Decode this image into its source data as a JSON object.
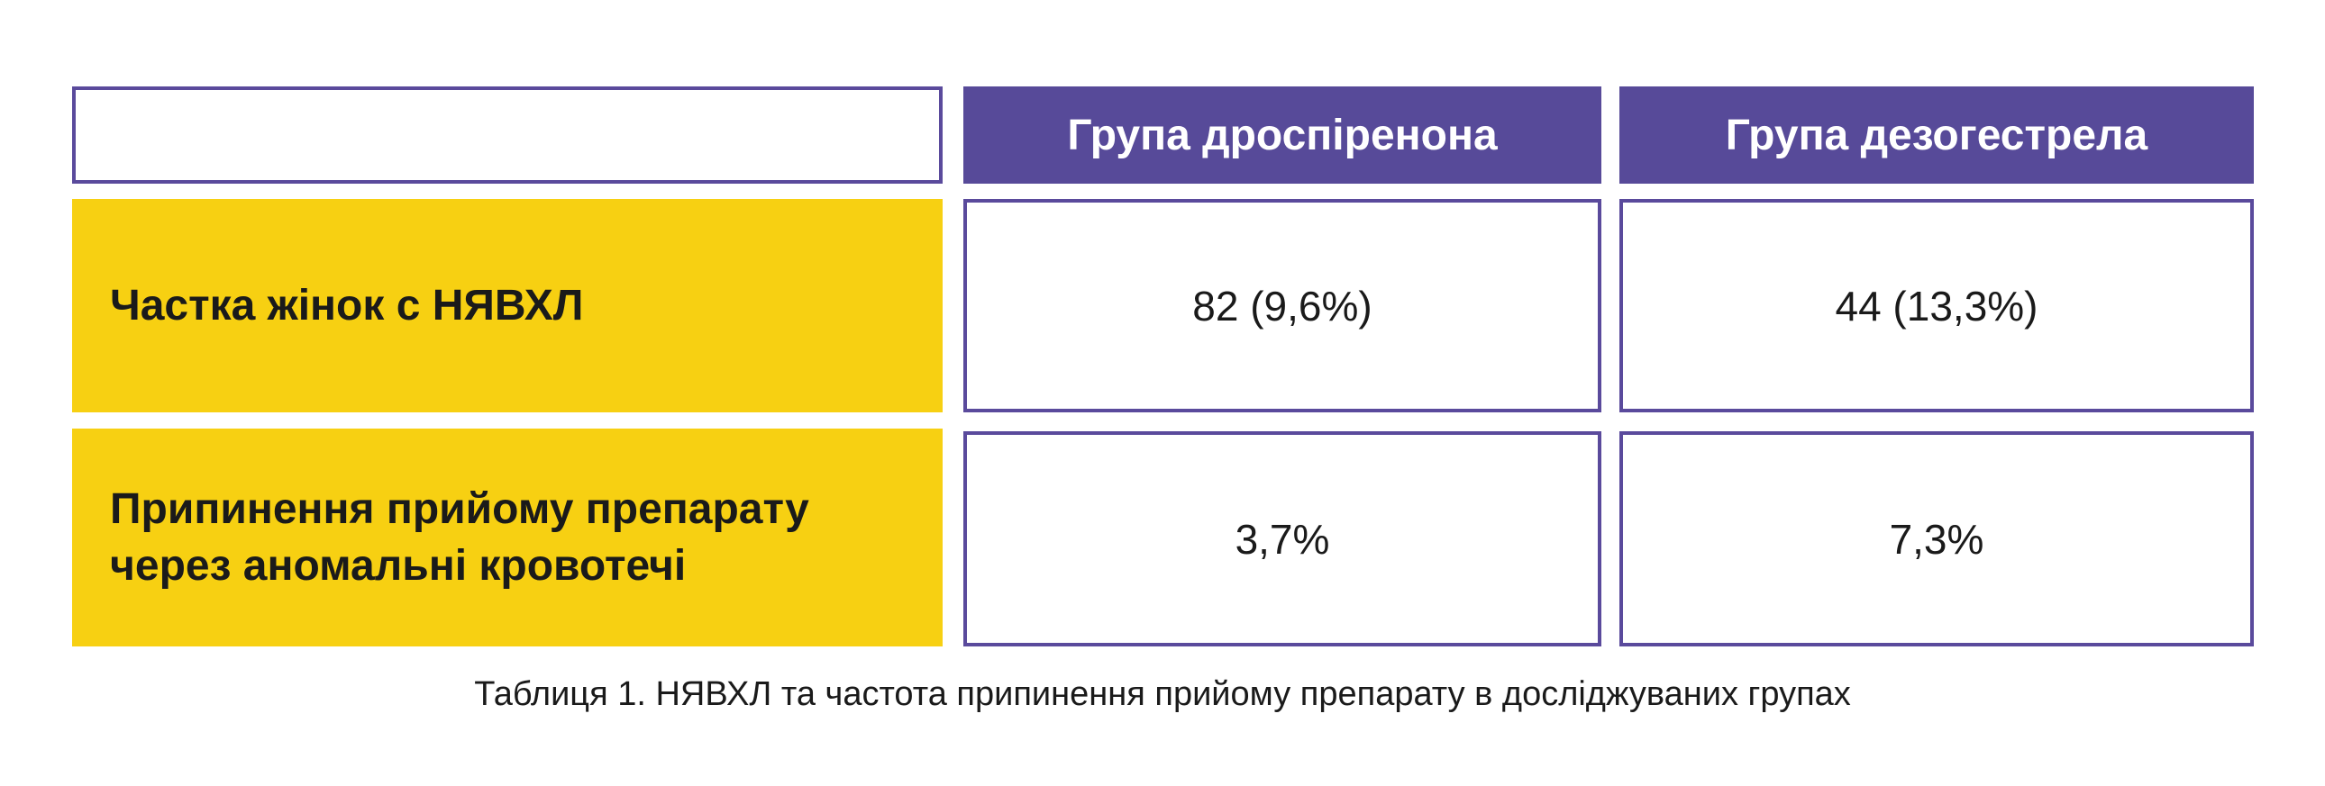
{
  "table": {
    "headers": [
      "",
      "Група дроспіренона",
      "Група дезогестрела"
    ],
    "rows": [
      {
        "label": "Частка жінок с НЯВХЛ",
        "values": [
          "82 (9,6%)",
          "44 (13,3%)"
        ]
      },
      {
        "label_lines": [
          "Припинення прийому препарату",
          "через аномальні кровотечі"
        ],
        "values": [
          "3,7%",
          "7,3%"
        ]
      }
    ]
  },
  "caption": "Таблиця 1. НЯВХЛ та частота припинення прийому препарату в досліджуваних групах",
  "colors": {
    "header_bg": "#574a99",
    "label_bg": "#f7d012",
    "border": "#5a4a9c"
  }
}
